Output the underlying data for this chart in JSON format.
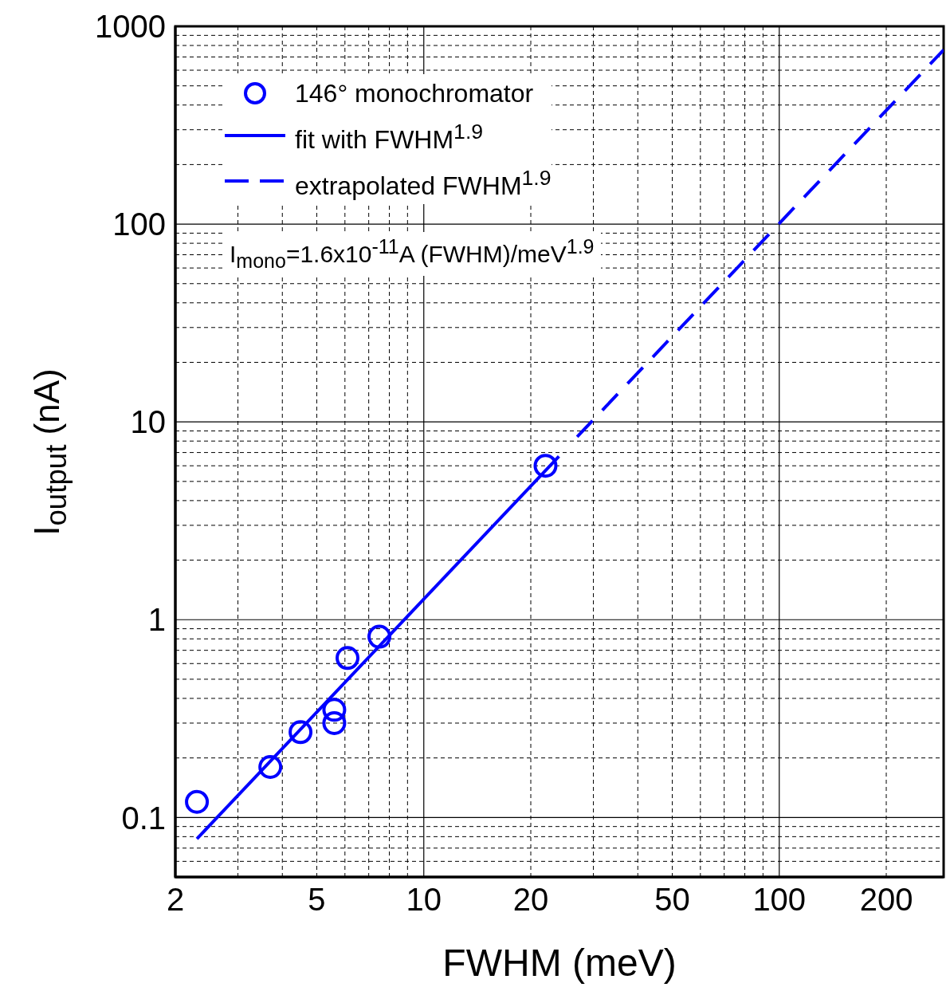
{
  "chart_data": {
    "type": "scatter",
    "xlabel": "FWHM (meV)",
    "ylabel": "I$_{output}$ (nA)",
    "log": "xy",
    "grid": true,
    "legend": "top left",
    "xlim": [
      2,
      290
    ],
    "ylim": [
      0.05,
      1000
    ],
    "xticks": [
      2,
      {
        "value": 3,
        "label": null
      },
      {
        "value": 4,
        "label": null
      },
      5,
      {
        "value": 6,
        "label": null
      },
      {
        "value": 7,
        "label": null
      },
      {
        "value": 8,
        "label": null
      },
      {
        "value": 9,
        "label": null
      },
      10,
      20,
      {
        "value": 30,
        "label": null
      },
      {
        "value": 40,
        "label": null
      },
      50,
      {
        "value": 60,
        "label": null
      },
      {
        "value": 70,
        "label": null
      },
      {
        "value": 80,
        "label": null
      },
      {
        "value": 90,
        "label": null
      },
      100,
      200
    ],
    "yticks": [
      {
        "value": 0.05,
        "label": null
      },
      {
        "value": 0.06,
        "label": null
      },
      {
        "value": 0.07,
        "label": null
      },
      {
        "value": 0.08,
        "label": null
      },
      {
        "value": 0.09,
        "label": null
      },
      0.1,
      {
        "value": 0.2,
        "label": null
      },
      {
        "value": 0.3,
        "label": null
      },
      {
        "value": 0.4,
        "label": null
      },
      {
        "value": 0.5,
        "label": null
      },
      {
        "value": 0.6,
        "label": null
      },
      {
        "value": 0.7,
        "label": null
      },
      {
        "value": 0.8,
        "label": null
      },
      {
        "value": 0.9,
        "label": null
      },
      1,
      {
        "value": 2,
        "label": null
      },
      {
        "value": 3,
        "label": null
      },
      {
        "value": 4,
        "label": null
      },
      {
        "value": 5,
        "label": null
      },
      {
        "value": 6,
        "label": null
      },
      {
        "value": 7,
        "label": null
      },
      {
        "value": 8,
        "label": null
      },
      {
        "value": 9,
        "label": null
      },
      10,
      {
        "value": 20,
        "label": null
      },
      {
        "value": 30,
        "label": null
      },
      {
        "value": 40,
        "label": null
      },
      {
        "value": 50,
        "label": null
      },
      {
        "value": 60,
        "label": null
      },
      {
        "value": 70,
        "label": null
      },
      {
        "value": 80,
        "label": null
      },
      {
        "value": 90,
        "label": null
      },
      100,
      {
        "value": 200,
        "label": null
      },
      {
        "value": 300,
        "label": null
      },
      {
        "value": 400,
        "label": null
      },
      {
        "value": 500,
        "label": null
      },
      {
        "value": 600,
        "label": null
      },
      {
        "value": 700,
        "label": null
      },
      {
        "value": 800,
        "label": null
      },
      {
        "value": 900,
        "label": null
      },
      1000
    ],
    "annotations": [
      "I$_{mono}$=1.6x10$^{-11}$A (FWHM)/meV$^{1.9}$"
    ],
    "series": [
      {
        "name": "146° monochromator",
        "marker": "circle",
        "color": "#0000ff",
        "x": [
          2.3,
          3.7,
          4.5,
          5.6,
          5.6,
          6.1,
          7.5,
          22
        ],
        "values": [
          0.12,
          0.18,
          0.27,
          0.3,
          0.35,
          0.64,
          0.82,
          6.0
        ]
      },
      {
        "name": "fit with FWHM$^{1.9}$",
        "type": "line",
        "line_style": "solid",
        "marker": "none",
        "color": "#0000ff",
        "x": [
          2.3,
          24
        ],
        "values": [
          0.078,
          6.7
        ]
      },
      {
        "name": "extrapolated FWHM$^{1.9}$",
        "type": "line",
        "line_style": "dashed",
        "marker": "none",
        "color": "#0000ff",
        "x": [
          27,
          290
        ],
        "values": [
          8.4,
          760
        ]
      }
    ]
  }
}
